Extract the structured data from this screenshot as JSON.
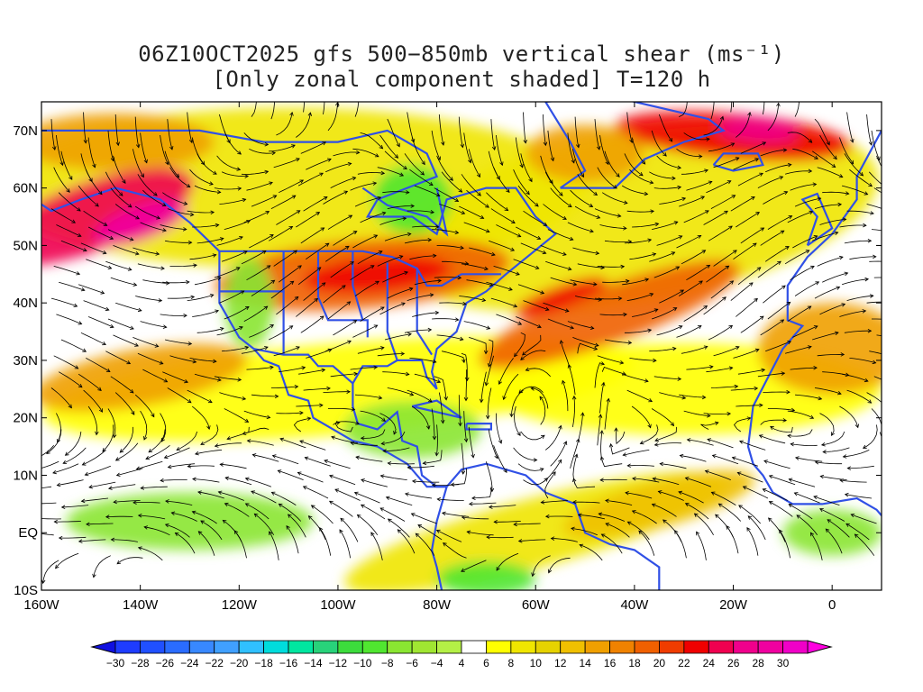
{
  "title": {
    "line1": "06Z10OCT2025 gfs 500−850mb vertical shear (ms⁻¹)",
    "line2": "[Only zonal component shaded] T=120 h"
  },
  "map": {
    "projection": "cylindrical",
    "lon_range": [
      -160,
      10
    ],
    "lat_range": [
      -10,
      75
    ],
    "x_ticks": [
      {
        "lon": -160,
        "label": "160W"
      },
      {
        "lon": -140,
        "label": "140W"
      },
      {
        "lon": -120,
        "label": "120W"
      },
      {
        "lon": -100,
        "label": "100W"
      },
      {
        "lon": -80,
        "label": "80W"
      },
      {
        "lon": -60,
        "label": "60W"
      },
      {
        "lon": -40,
        "label": "40W"
      },
      {
        "lon": -20,
        "label": "20W"
      },
      {
        "lon": 0,
        "label": "0"
      }
    ],
    "y_ticks": [
      {
        "lat": 70,
        "label": "70N"
      },
      {
        "lat": 60,
        "label": "60N"
      },
      {
        "lat": 50,
        "label": "50N"
      },
      {
        "lat": 40,
        "label": "40N"
      },
      {
        "lat": 30,
        "label": "30N"
      },
      {
        "lat": 20,
        "label": "20N"
      },
      {
        "lat": 10,
        "label": "10N"
      },
      {
        "lat": 0,
        "label": "EQ"
      },
      {
        "lat": -10,
        "label": "10S"
      }
    ],
    "coastline_color": "#3050e6",
    "streamline_color": "#000000"
  },
  "colorbar": {
    "levels": [
      -30,
      -28,
      -26,
      -24,
      -22,
      -20,
      -18,
      -16,
      -14,
      -12,
      -10,
      -8,
      -6,
      -4,
      4,
      6,
      8,
      10,
      12,
      14,
      16,
      18,
      20,
      22,
      24,
      26,
      28,
      30
    ],
    "labels": [
      "−30",
      "−28",
      "−26",
      "−24",
      "−22",
      "−20",
      "−18",
      "−16",
      "−14",
      "−12",
      "−10",
      "−8",
      "−6",
      "−4",
      "4",
      "6",
      "8",
      "10",
      "12",
      "14",
      "16",
      "18",
      "20",
      "22",
      "24",
      "26",
      "28",
      "30"
    ],
    "colors": [
      "#1e3cff",
      "#2050ff",
      "#2a6cff",
      "#3888ff",
      "#40a0ff",
      "#30c0ff",
      "#00dcdc",
      "#00e6a0",
      "#28d27a",
      "#3cdc3c",
      "#50e630",
      "#8ae632",
      "#a0e632",
      "#b4f046",
      "#ffffff",
      "#ffff00",
      "#f0e600",
      "#e6d200",
      "#f0c000",
      "#f0a000",
      "#f08200",
      "#f06000",
      "#f03c00",
      "#f00000",
      "#f00050",
      "#f0008c",
      "#f000a0",
      "#f000c8"
    ],
    "under_color": "#1010e0",
    "over_color": "#ff00e0"
  },
  "shear_regions": [
    {
      "name": "north-pacific-jet",
      "lon": -150,
      "lat": 55,
      "rx": 22,
      "ry": 6,
      "rot": -20,
      "value": 24
    },
    {
      "name": "north-pacific-jet-core",
      "lon": -140,
      "lat": 54,
      "rx": 10,
      "ry": 3,
      "rot": -20,
      "value": 28
    },
    {
      "name": "arctic-west",
      "lon": -145,
      "lat": 68,
      "rx": 20,
      "ry": 5,
      "rot": 0,
      "value": 14
    },
    {
      "name": "us-jet",
      "lon": -95,
      "lat": 45,
      "rx": 30,
      "ry": 6,
      "rot": -5,
      "value": 18
    },
    {
      "name": "us-jet-core",
      "lon": -92,
      "lat": 45,
      "rx": 15,
      "ry": 3,
      "rot": -5,
      "value": 22
    },
    {
      "name": "atlantic-jet",
      "lon": -45,
      "lat": 38,
      "rx": 28,
      "ry": 5,
      "rot": -20,
      "value": 18
    },
    {
      "name": "atlantic-jet-core",
      "lon": -55,
      "lat": 41,
      "rx": 10,
      "ry": 2,
      "rot": -20,
      "value": 22
    },
    {
      "name": "greenland-jet",
      "lon": -20,
      "lat": 69,
      "rx": 24,
      "ry": 4,
      "rot": 5,
      "value": 22
    },
    {
      "name": "greenland-core",
      "lon": -15,
      "lat": 70,
      "rx": 8,
      "ry": 2,
      "rot": 5,
      "value": 26
    },
    {
      "name": "labrador",
      "lon": -50,
      "lat": 66,
      "rx": 12,
      "ry": 5,
      "rot": 0,
      "value": 14
    },
    {
      "name": "subtropical-pacific",
      "lon": -140,
      "lat": 27,
      "rx": 22,
      "ry": 5,
      "rot": -10,
      "value": 14
    },
    {
      "name": "east-atlantic-sub",
      "lon": 0,
      "lat": 32,
      "rx": 15,
      "ry": 8,
      "rot": 0,
      "value": 14
    },
    {
      "name": "trop-atlantic",
      "lon": -35,
      "lat": 5,
      "rx": 20,
      "ry": 4,
      "rot": -15,
      "value": 12
    },
    {
      "name": "trop-pacific-green",
      "lon": -130,
      "lat": 2,
      "rx": 25,
      "ry": 5,
      "rot": 0,
      "value": -8
    },
    {
      "name": "caribbean-green",
      "lon": -85,
      "lat": 18,
      "rx": 14,
      "ry": 5,
      "rot": 0,
      "value": -8
    },
    {
      "name": "rockies-green",
      "lon": -118,
      "lat": 40,
      "rx": 5,
      "ry": 8,
      "rot": 0,
      "value": -8
    },
    {
      "name": "hudson-green",
      "lon": -85,
      "lat": 58,
      "rx": 8,
      "ry": 6,
      "rot": 0,
      "value": -10
    },
    {
      "name": "south-america-green",
      "lon": -70,
      "lat": -8,
      "rx": 10,
      "ry": 3,
      "rot": 0,
      "value": -10
    },
    {
      "name": "africa-green",
      "lon": 0,
      "lat": 0,
      "rx": 10,
      "ry": 4,
      "rot": 0,
      "value": -8
    }
  ]
}
